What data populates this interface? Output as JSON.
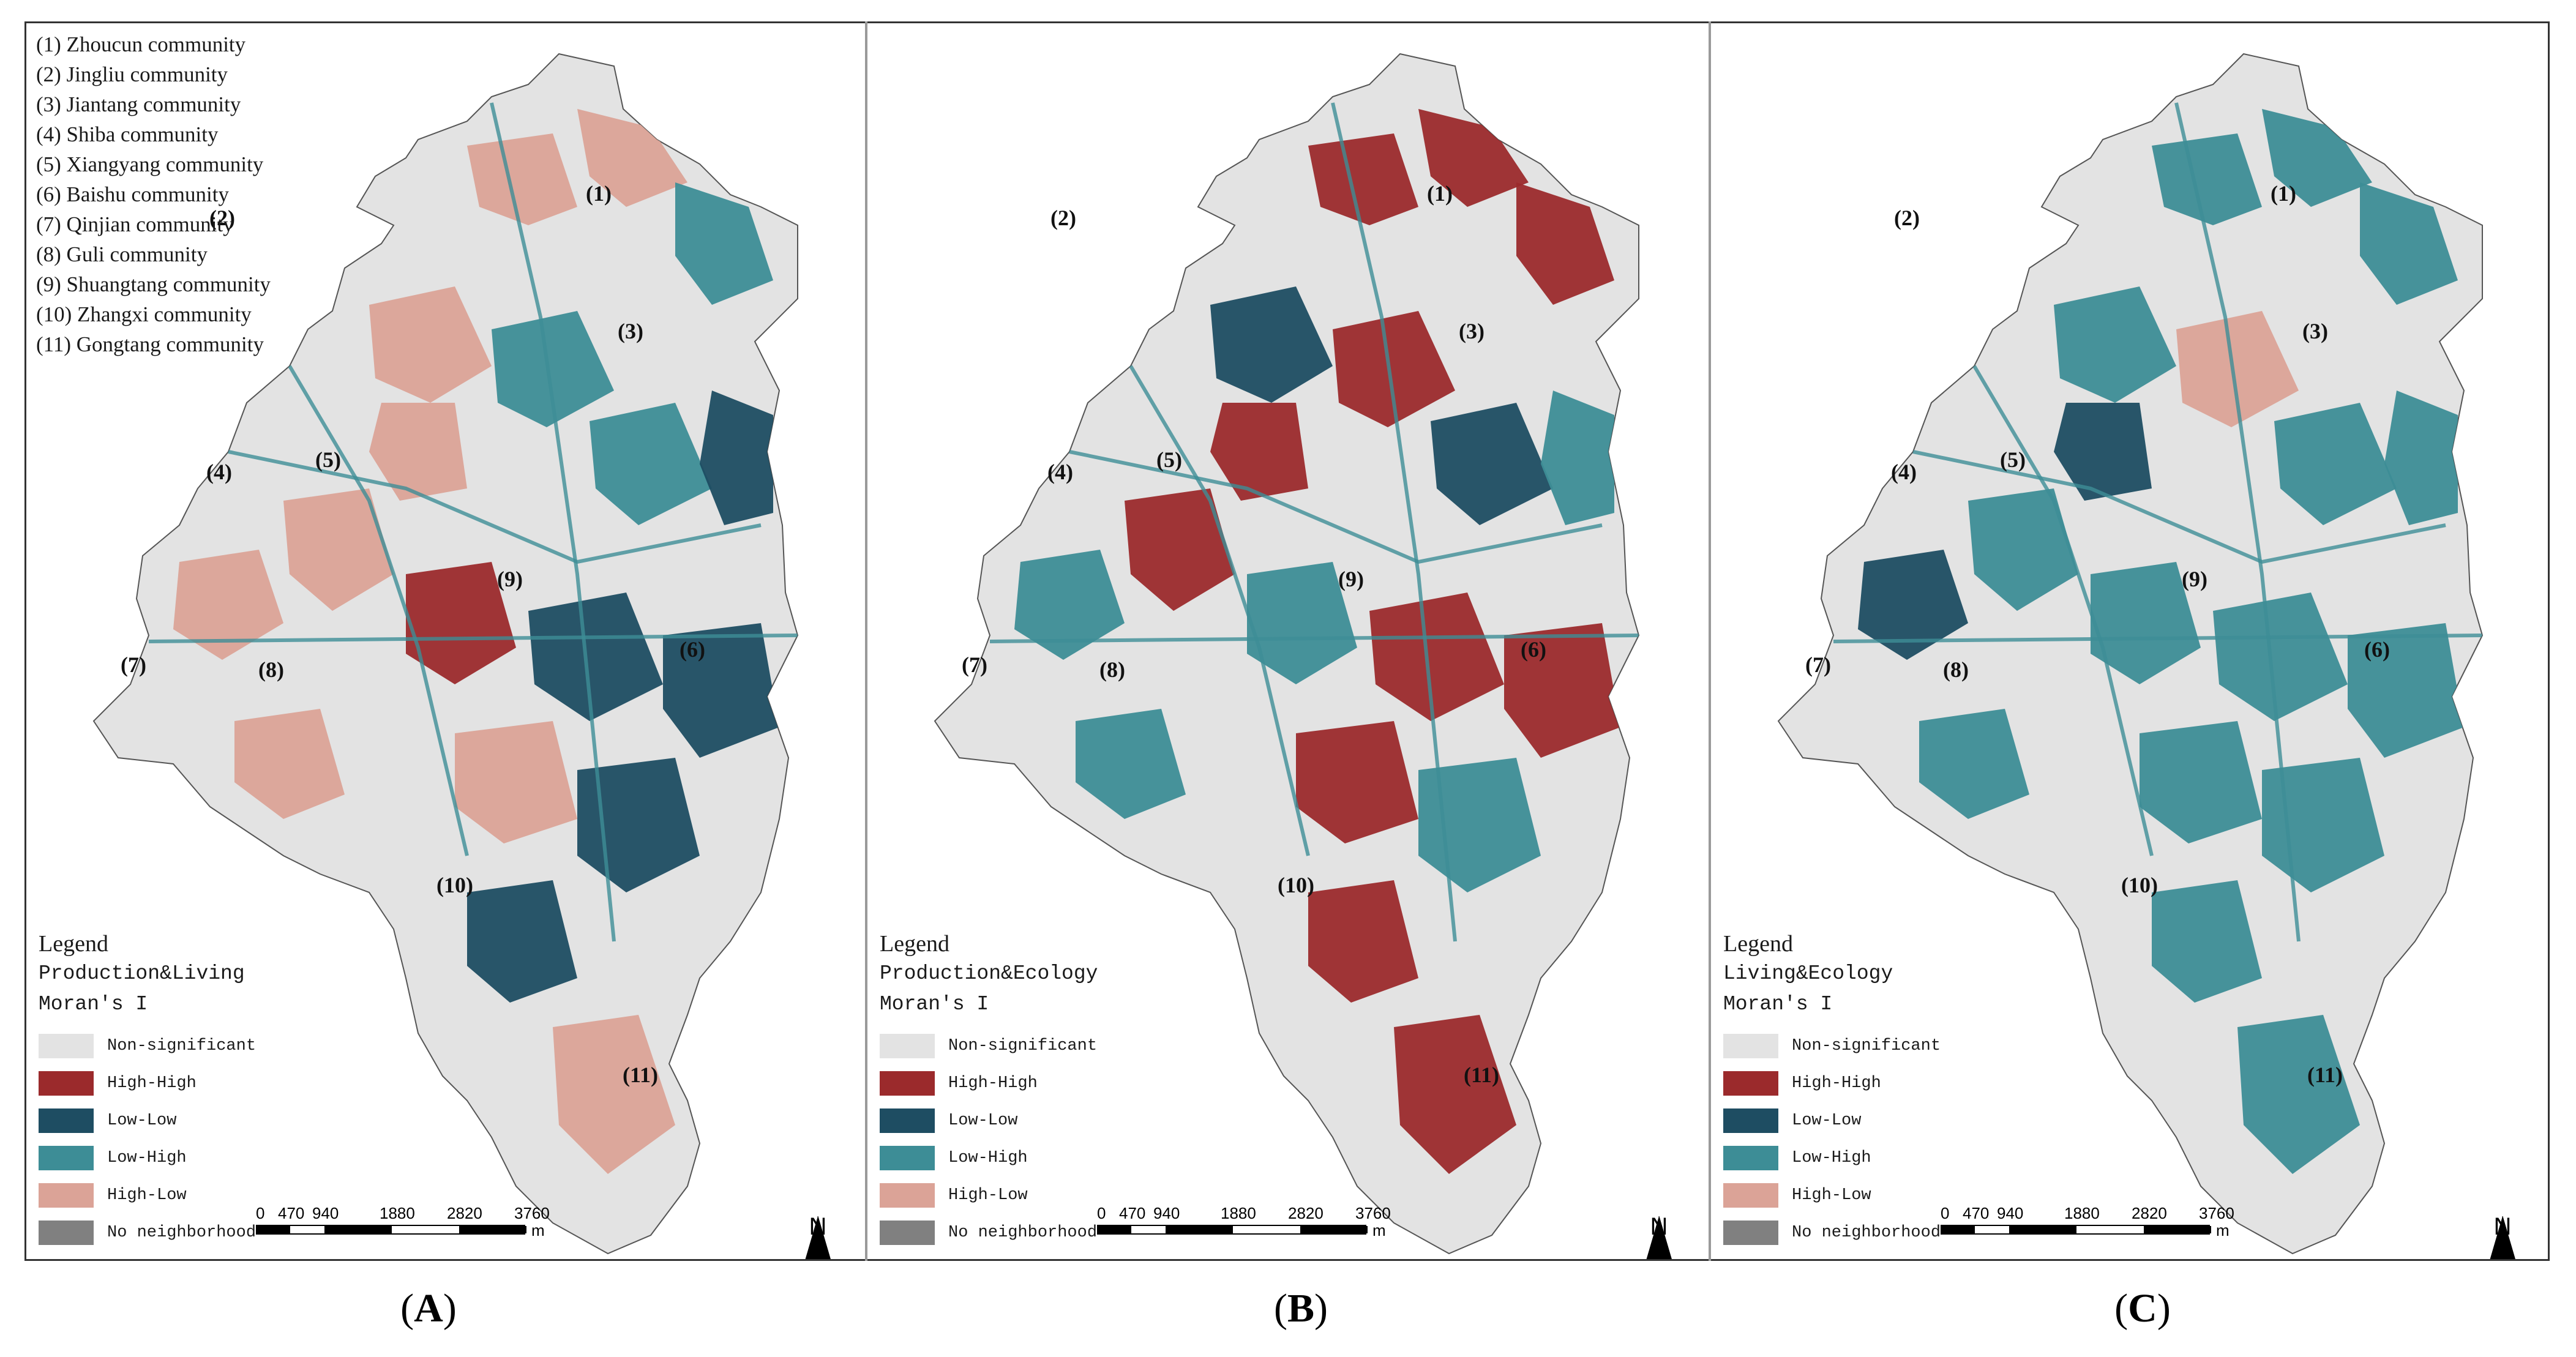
{
  "communities": [
    "(1) Zhoucun community",
    "(2) Jingliu community",
    "(3) Jiantang community",
    "(4) Shiba community",
    "(5) Xiangyang community",
    "(6) Baishu community",
    "(7) Qinjian community",
    "(8) Guli community",
    "(9) Shuangtang community",
    "(10) Zhangxi community",
    "(11) Gongtang community"
  ],
  "map_labels": [
    "(1)",
    "(2)",
    "(3)",
    "(4)",
    "(5)",
    "(6)",
    "(7)",
    "(8)",
    "(9)",
    "(10)",
    "(11)"
  ],
  "legend": {
    "title": "Legend",
    "metric": "Moran's I",
    "categories": [
      {
        "label": "Non-significant",
        "color": "#e3e3e3"
      },
      {
        "label": "High-High",
        "color": "#9b2a2c"
      },
      {
        "label": "Low-Low",
        "color": "#1e4d62"
      },
      {
        "label": "Low-High",
        "color": "#3d8d96"
      },
      {
        "label": "High-Low",
        "color": "#dba397"
      },
      {
        "label": "No neighborhood",
        "color": "#808080"
      }
    ]
  },
  "scale": {
    "ticks": [
      "0",
      "470",
      "940",
      "1880",
      "2820",
      "3760"
    ],
    "unit": "m"
  },
  "north_label": "N",
  "panels": [
    {
      "caption_letter": "A",
      "legend_subtitle": "Production&Living",
      "dominant": "High-Low / Low-Low mix"
    },
    {
      "caption_letter": "B",
      "legend_subtitle": "Production&Ecology",
      "dominant": "High-High / Low-High mix"
    },
    {
      "caption_letter": "C",
      "legend_subtitle": "Living&Ecology",
      "dominant": "Low-High"
    }
  ]
}
